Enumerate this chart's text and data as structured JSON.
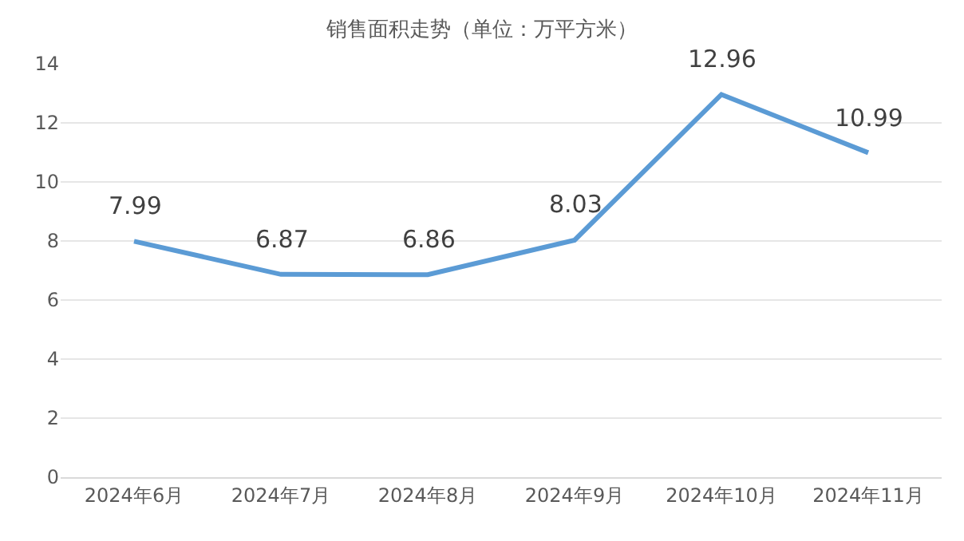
{
  "chart_data": {
    "type": "line",
    "title": "销售面积走势（单位：万平方米）",
    "categories": [
      "2024年6月",
      "2024年7月",
      "2024年8月",
      "2024年9月",
      "2024年10月",
      "2024年11月"
    ],
    "values": [
      7.99,
      6.87,
      6.86,
      8.03,
      12.96,
      10.99
    ],
    "color": "#5b9bd5",
    "ylim": [
      0,
      14
    ],
    "yticks": [
      0,
      2,
      4,
      6,
      8,
      10,
      12,
      14
    ],
    "grid": "y",
    "data_labels": true,
    "marker": "none",
    "line_style": "solid"
  }
}
